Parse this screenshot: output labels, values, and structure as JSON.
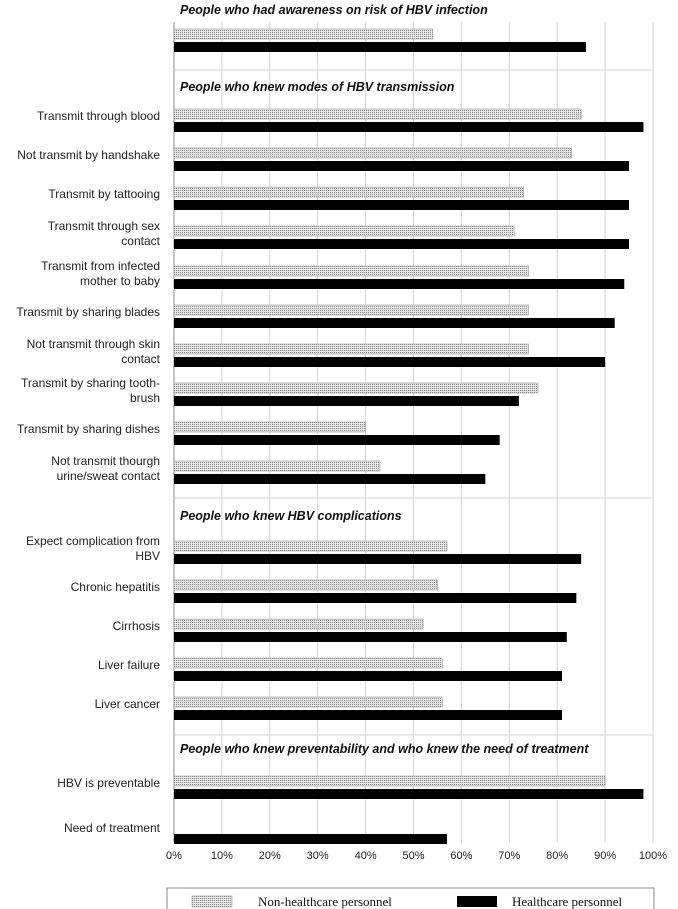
{
  "chart_data": {
    "type": "bar",
    "orientation": "horizontal",
    "grouped": true,
    "xlim": [
      0,
      100
    ],
    "xticks": [
      "0%",
      "10%",
      "20%",
      "30%",
      "40%",
      "50%",
      "60%",
      "70%",
      "80%",
      "90%",
      "100%"
    ],
    "grid": true,
    "legend_position": "bottom",
    "legend": [
      {
        "name": "Non-healthcare personnel",
        "color": "#c8c8c8",
        "pattern": "dotted"
      },
      {
        "name": "Healthcare personnel",
        "color": "#000000",
        "pattern": "solid"
      }
    ],
    "sections": [
      {
        "title": "People who had awareness on risk of HBV infection",
        "categories": [
          {
            "label": [
              ""
            ],
            "non_hcp": 54,
            "hcp": 86
          }
        ]
      },
      {
        "title": "People who knew modes of HBV transmission",
        "categories": [
          {
            "label": [
              "Transmit through blood"
            ],
            "non_hcp": 85,
            "hcp": 98
          },
          {
            "label": [
              "Not transmit by handshake"
            ],
            "non_hcp": 83,
            "hcp": 95
          },
          {
            "label": [
              "Transmit by tattooing"
            ],
            "non_hcp": 73,
            "hcp": 95
          },
          {
            "label": [
              "Transmit through sex",
              "contact"
            ],
            "non_hcp": 71,
            "hcp": 95
          },
          {
            "label": [
              "Transmit from infected",
              "mother to baby"
            ],
            "non_hcp": 74,
            "hcp": 94
          },
          {
            "label": [
              "Transmit by sharing blades"
            ],
            "non_hcp": 74,
            "hcp": 92
          },
          {
            "label": [
              "Not transmit through skin",
              "contact"
            ],
            "non_hcp": 74,
            "hcp": 90
          },
          {
            "label": [
              "Transmit by sharing tooth-",
              "brush"
            ],
            "non_hcp": 76,
            "hcp": 72
          },
          {
            "label": [
              "Transmit by sharing dishes"
            ],
            "non_hcp": 40,
            "hcp": 68
          },
          {
            "label": [
              "Not transmit thourgh",
              "urine/sweat contact"
            ],
            "non_hcp": 43,
            "hcp": 65
          }
        ]
      },
      {
        "title": "People who knew HBV complications",
        "categories": [
          {
            "label": [
              "Expect complication from",
              "HBV"
            ],
            "non_hcp": 57,
            "hcp": 85
          },
          {
            "label": [
              "Chronic hepatitis"
            ],
            "non_hcp": 55,
            "hcp": 84
          },
          {
            "label": [
              "Cirrhosis"
            ],
            "non_hcp": 52,
            "hcp": 82
          },
          {
            "label": [
              "Liver failure"
            ],
            "non_hcp": 56,
            "hcp": 81
          },
          {
            "label": [
              "Liver cancer"
            ],
            "non_hcp": 56,
            "hcp": 81
          }
        ]
      },
      {
        "title": "People who knew preventability and who knew the need of treatment",
        "categories": [
          {
            "label": [
              "HBV is preventable"
            ],
            "non_hcp": 90,
            "hcp": 98
          },
          {
            "label": [
              "Need of treatment"
            ],
            "non_hcp": 0,
            "hcp": 57
          }
        ]
      }
    ]
  }
}
